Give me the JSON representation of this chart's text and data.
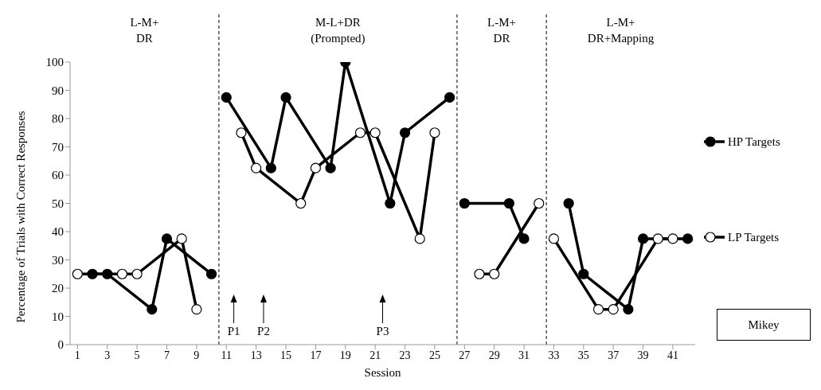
{
  "chart_data": {
    "type": "line",
    "xlabel": "Session",
    "ylabel": "Percentage of Trials with Correct Responses",
    "x": [
      1,
      2,
      3,
      4,
      5,
      6,
      7,
      8,
      9,
      10,
      11,
      12,
      13,
      14,
      15,
      16,
      17,
      18,
      19,
      20,
      21,
      22,
      23,
      24,
      25,
      26,
      27,
      28,
      29,
      30,
      31,
      32,
      33,
      34,
      35,
      36,
      37,
      38,
      39,
      40,
      41,
      42
    ],
    "series": [
      {
        "name": "HP Targets",
        "color": "#000000",
        "values": [
          null,
          25,
          25,
          null,
          null,
          12.5,
          37.5,
          null,
          null,
          25,
          87.5,
          null,
          null,
          62.5,
          87.5,
          null,
          null,
          62.5,
          100,
          null,
          null,
          50,
          75,
          null,
          null,
          87.5,
          50,
          null,
          null,
          50,
          37.5,
          null,
          null,
          50,
          25,
          null,
          null,
          12.5,
          37.5,
          null,
          null,
          37.5
        ]
      },
      {
        "name": "LP Targets",
        "color": "#000000",
        "values": [
          25,
          null,
          null,
          25,
          25,
          null,
          null,
          37.5,
          12.5,
          null,
          null,
          75,
          62.5,
          null,
          null,
          50,
          62.5,
          null,
          null,
          75,
          75,
          null,
          null,
          37.5,
          75,
          null,
          null,
          25,
          25,
          null,
          null,
          50,
          37.5,
          null,
          null,
          12.5,
          12.5,
          null,
          null,
          37.5,
          37.5,
          null
        ]
      }
    ],
    "xlim": [
      0.5,
      42.5
    ],
    "xticks": [
      1,
      3,
      5,
      7,
      9,
      11,
      13,
      15,
      17,
      19,
      21,
      23,
      25,
      27,
      29,
      31,
      33,
      35,
      37,
      39,
      41
    ],
    "ylim": [
      0,
      100
    ],
    "yticks": [
      0,
      10,
      20,
      30,
      40,
      50,
      60,
      70,
      80,
      90,
      100
    ],
    "ref_lines": [
      {
        "axis": "x",
        "value": 10.5,
        "line_style": "dashed"
      },
      {
        "axis": "x",
        "value": 26.5,
        "line_style": "dashed"
      },
      {
        "axis": "x",
        "value": 32.5,
        "line_style": "dashed"
      },
      {
        "axis": "x",
        "value": 11.5,
        "label": "P1",
        "line_style": "solid"
      },
      {
        "axis": "x",
        "value": 13.5,
        "label": "P2",
        "line_style": "solid"
      },
      {
        "axis": "x",
        "value": 21.5,
        "label": "P3",
        "line_style": "solid"
      }
    ],
    "annotations": [
      "L-M+\nDR",
      "M-L+DR\n(Prompted)",
      "L-M+\nDR",
      "L-M+\nDR+Mapping",
      "Mikey"
    ],
    "legend": "right",
    "marker": "circle",
    "line_style": "solid",
    "grid": false
  }
}
